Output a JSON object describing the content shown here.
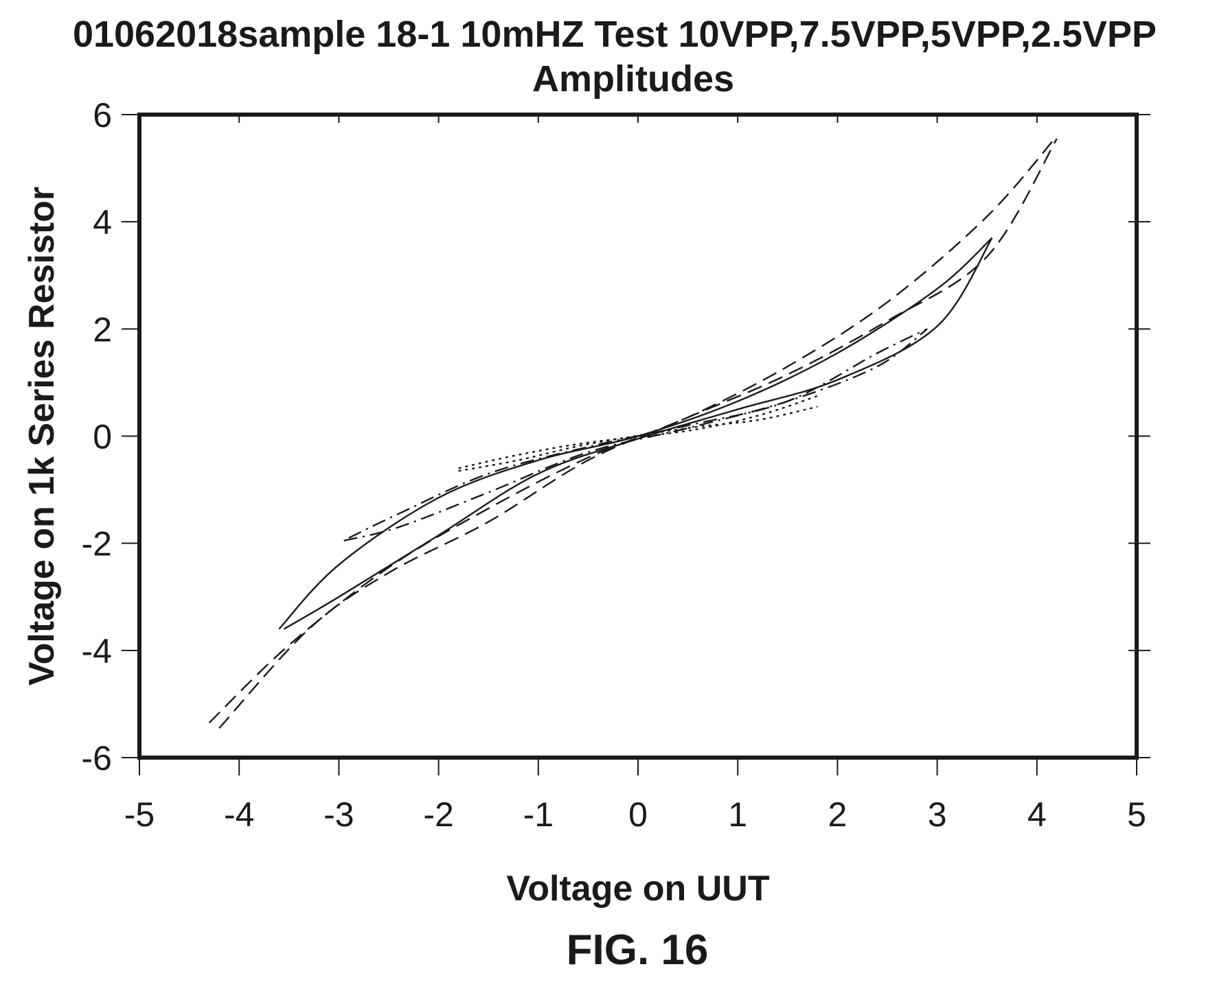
{
  "figure": {
    "title_line1": "01062018sample 18-1 10mHZ Test 10VPP,7.5VPP,5VPP,2.5VPP",
    "title_line2": "Amplitudes",
    "caption": "FIG. 16"
  },
  "chart_data": {
    "type": "line",
    "title": "01062018sample 18-1 10mHZ Test 10VPP,7.5VPP,5VPP,2.5VPP Amplitudes",
    "xlabel": "Voltage on UUT",
    "ylabel": "Voltage on 1k Series Resistor",
    "xlim": [
      -5,
      5
    ],
    "ylim": [
      -6,
      6
    ],
    "xticks": [
      -5,
      -4,
      -3,
      -2,
      -1,
      0,
      1,
      2,
      3,
      4,
      5
    ],
    "yticks": [
      -6,
      -4,
      -2,
      0,
      2,
      4,
      6
    ],
    "grid": false,
    "legend": "none",
    "series": [
      {
        "style": "dashed",
        "upper": [
          [
            -4.3,
            -5.35
          ],
          [
            -3.5,
            -3.9
          ],
          [
            -2.5,
            -2.45
          ],
          [
            -1.5,
            -1.35
          ],
          [
            -0.5,
            -0.4
          ],
          [
            0.5,
            0.35
          ],
          [
            1.5,
            1.3
          ],
          [
            2.5,
            2.5
          ],
          [
            3.5,
            4.1
          ],
          [
            4.2,
            5.6
          ]
        ],
        "lower": [
          [
            -4.2,
            -5.45
          ],
          [
            -3.3,
            -3.6
          ],
          [
            -2.5,
            -2.55
          ],
          [
            -1.5,
            -1.6
          ],
          [
            -0.5,
            -0.45
          ],
          [
            0.5,
            0.35
          ],
          [
            1.5,
            1.15
          ],
          [
            2.5,
            2.15
          ],
          [
            3.5,
            3.35
          ],
          [
            4.2,
            5.55
          ]
        ]
      },
      {
        "style": "solid",
        "upper": [
          [
            -3.6,
            -3.6
          ],
          [
            -3.0,
            -2.4
          ],
          [
            -2.0,
            -1.15
          ],
          [
            -1.0,
            -0.45
          ],
          [
            0.0,
            0.0
          ],
          [
            1.0,
            0.65
          ],
          [
            2.0,
            1.55
          ],
          [
            3.0,
            2.75
          ],
          [
            3.55,
            3.7
          ]
        ],
        "lower": [
          [
            -3.55,
            -3.6
          ],
          [
            -3.0,
            -3.0
          ],
          [
            -2.0,
            -1.85
          ],
          [
            -1.0,
            -0.7
          ],
          [
            0.0,
            -0.05
          ],
          [
            1.0,
            0.5
          ],
          [
            2.0,
            1.05
          ],
          [
            3.0,
            2.05
          ],
          [
            3.55,
            3.7
          ]
        ]
      },
      {
        "style": "dash-dot",
        "upper": [
          [
            -2.9,
            -1.9
          ],
          [
            -2.4,
            -1.45
          ],
          [
            -1.5,
            -0.7
          ],
          [
            -0.5,
            -0.2
          ],
          [
            0.5,
            0.2
          ],
          [
            1.5,
            0.65
          ],
          [
            2.4,
            1.55
          ],
          [
            2.9,
            2.0
          ]
        ],
        "lower": [
          [
            -2.95,
            -1.95
          ],
          [
            -2.4,
            -1.7
          ],
          [
            -1.5,
            -1.05
          ],
          [
            -0.5,
            -0.3
          ],
          [
            0.5,
            0.15
          ],
          [
            1.5,
            0.65
          ],
          [
            2.4,
            1.3
          ],
          [
            2.9,
            2.0
          ]
        ]
      },
      {
        "style": "dotted",
        "upper": [
          [
            -1.8,
            -0.6
          ],
          [
            -1.2,
            -0.35
          ],
          [
            -0.5,
            -0.12
          ],
          [
            0.5,
            0.1
          ],
          [
            1.2,
            0.38
          ],
          [
            1.8,
            0.75
          ]
        ],
        "lower": [
          [
            -1.8,
            -0.65
          ],
          [
            -1.2,
            -0.45
          ],
          [
            -0.5,
            -0.15
          ],
          [
            0.5,
            0.15
          ],
          [
            1.2,
            0.3
          ],
          [
            1.8,
            0.55
          ]
        ]
      }
    ]
  }
}
